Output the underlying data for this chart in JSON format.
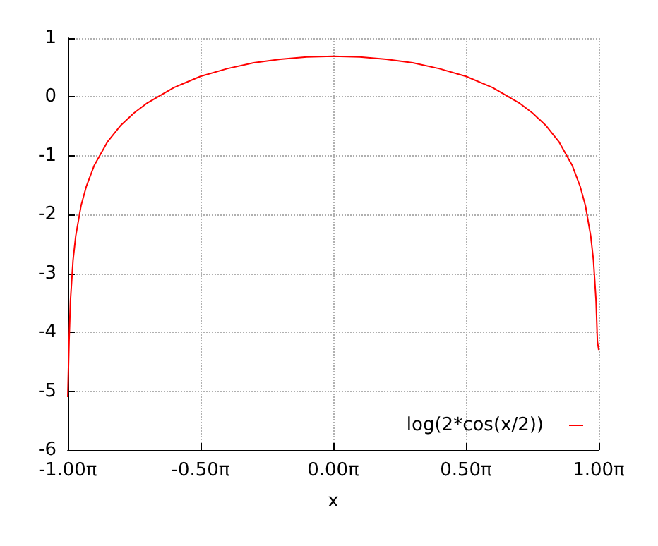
{
  "chart_data": {
    "type": "line",
    "xlabel": "x",
    "x": [
      -3.1416,
      -3.126,
      -3.11,
      -3.079,
      -3.047,
      -2.985,
      -2.922,
      -2.827,
      -2.67,
      -2.513,
      -2.356,
      -2.199,
      -1.885,
      -1.571,
      -1.257,
      -0.942,
      -0.628,
      -0.314,
      0,
      0.314,
      0.628,
      0.942,
      1.257,
      1.571,
      1.885,
      2.199,
      2.356,
      2.513,
      2.67,
      2.827,
      2.922,
      2.985,
      3.047,
      3.079,
      3.11,
      3.126,
      3.1416
    ],
    "series": [
      {
        "name": "log(2*cos(x/2))",
        "color": "#ff0000",
        "values": [
          -5.1,
          -4.15,
          -3.46,
          -2.77,
          -2.36,
          -1.85,
          -1.52,
          -1.16,
          -0.76,
          -0.48,
          -0.27,
          -0.1,
          0.16,
          0.35,
          0.48,
          0.58,
          0.64,
          0.68,
          0.69,
          0.68,
          0.64,
          0.58,
          0.48,
          0.35,
          0.16,
          -0.1,
          -0.27,
          -0.48,
          -0.76,
          -1.16,
          -1.52,
          -1.85,
          -2.36,
          -2.77,
          -3.46,
          -4.15,
          -4.3
        ]
      }
    ],
    "xlim": [
      -3.1416,
      3.1416
    ],
    "xticks": [
      {
        "value": -3.1416,
        "label": "-1.00π"
      },
      {
        "value": -1.5708,
        "label": "-0.50π"
      },
      {
        "value": 0,
        "label": "0.00π"
      },
      {
        "value": 1.5708,
        "label": "0.50π"
      },
      {
        "value": 3.1416,
        "label": "1.00π"
      }
    ],
    "ylim": [
      -6,
      1
    ],
    "yticks": [
      -6,
      -5,
      -4,
      -3,
      -2,
      -1,
      0,
      1
    ],
    "grid": true,
    "legend": "bottom right",
    "marker": "none",
    "line_style": "solid"
  }
}
